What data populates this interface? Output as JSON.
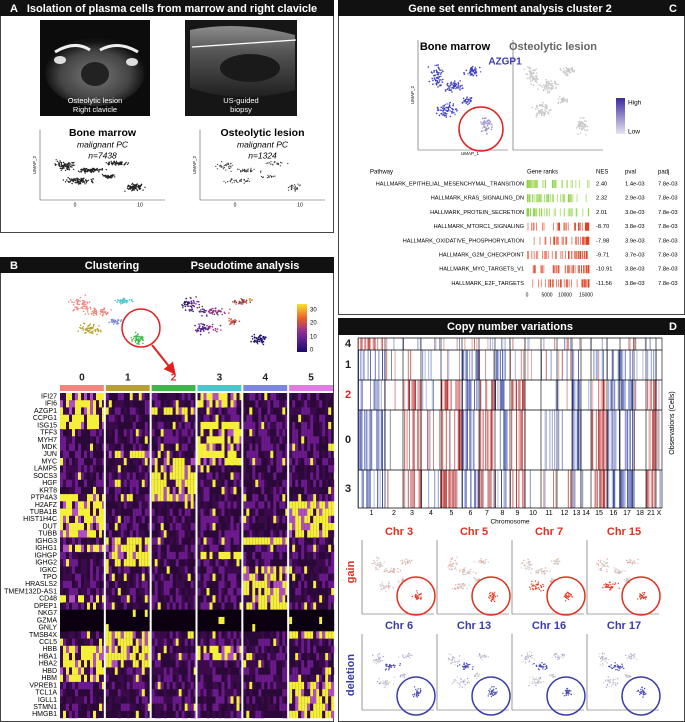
{
  "panel_a": {
    "label": "A",
    "title": "Isolation of plasma cells from marrow and right clavicle",
    "ct_caption": [
      "Osteolytic lesion",
      "Right clavicle"
    ],
    "us_caption": [
      "US-guided",
      "biopsy"
    ],
    "plots": [
      {
        "title": "Bone marrow",
        "subtitle": "malignant PC",
        "n": "n=7438",
        "y_axis": "UMAP_2",
        "x_ticks": [
          "0",
          "10"
        ]
      },
      {
        "title": "Osteolytic lesion",
        "subtitle": "malignant PC",
        "n": "n=1324",
        "y_axis": "UMAP_2",
        "x_ticks": [
          "0",
          "10"
        ]
      }
    ]
  },
  "panel_b": {
    "label": "B",
    "clustering": "Clustering",
    "pseudotime": "Pseudotime analysis",
    "colorbar_ticks": [
      "30",
      "20",
      "10",
      "0"
    ],
    "clusters": [
      {
        "label": "0",
        "color": "#f4847c"
      },
      {
        "label": "1",
        "color": "#b8a132"
      },
      {
        "label": "2",
        "color": "#3cb84a"
      },
      {
        "label": "3",
        "color": "#48c8cc"
      },
      {
        "label": "4",
        "color": "#7c86e0"
      },
      {
        "label": "5",
        "color": "#e27ae6"
      }
    ],
    "genes": [
      "IFI27",
      "IFI6",
      "AZGP1",
      "CCPG1",
      "ISG15",
      "TFF3",
      "MYH7",
      "MDK",
      "JUN",
      "MYC",
      "LAMP5",
      "SOCS3",
      "HGF",
      "KRT8",
      "PTP4A3",
      "H2AFZ",
      "TUBA1B",
      "HIST1H4C",
      "DUT",
      "TUBB",
      "IGHG3",
      "IGHG1",
      "IGHGP",
      "IGHG2",
      "IGKC",
      "TPO",
      "HRASLS2",
      "TMEM132D-AS1",
      "CD48",
      "DPEP1",
      "NKG7",
      "GZMA",
      "GNLY",
      "TMSB4X",
      "CCL5",
      "HBB",
      "HBA1",
      "HBA2",
      "HBD",
      "HBM",
      "VPREB1",
      "TCL1A",
      "IGLL1",
      "STMN1",
      "HMGB1"
    ]
  },
  "panel_c": {
    "label": "C",
    "title": "Gene set enrichment analysis cluster 2",
    "plot_titles": [
      "Bone marrow",
      "Osteolytic lesion"
    ],
    "gene": "AZGP1",
    "legend_high": "High",
    "legend_low": "Low",
    "y_axis": "UMAP_2",
    "x_axis": "UMAP_1",
    "table": {
      "headers": [
        "Pathway",
        "Gene ranks",
        "NES",
        "pval",
        "padj"
      ],
      "rows": [
        [
          "HALLMARK_EPITHELIAL_MESENCHYMAL_TRANSITION",
          "2.40",
          "1.4e-03",
          "7.8e-03"
        ],
        [
          "HALLMARK_KRAS_SIGNALING_DN",
          "2.32",
          "2.9e-03",
          "7.8e-03"
        ],
        [
          "HALLMARK_PROTEIN_SECRETION",
          "2.01",
          "3.0e-03",
          "7.8e-03"
        ],
        [
          "HALLMARK_MTORC1_SIGNALING",
          "-8.70",
          "3.8e-03",
          "7.8e-03"
        ],
        [
          "HALLMARK_OXIDATIVE_PHOSPHORYLATION",
          "-7.98",
          "3.9e-03",
          "7.8e-03"
        ],
        [
          "HALLMARK_G2M_CHECKPOINT",
          "-9.71",
          "3.7e-03",
          "7.8e-03"
        ],
        [
          "HALLMARK_MYC_TARGETS_V1",
          "-10.91",
          "3.8e-03",
          "7.8e-03"
        ],
        [
          "HALLMARK_E2F_TARGETS",
          "-11.56",
          "3.8e-03",
          "7.8e-03"
        ]
      ],
      "rank_ticks": [
        "0",
        "5000",
        "10000",
        "15000"
      ]
    }
  },
  "panel_d": {
    "label": "D",
    "title": "Copy number variations",
    "row_clusters": [
      "4",
      "1",
      "2",
      "0",
      "3"
    ],
    "y_axis": "Observations (Cells)",
    "x_axis": "Chromosome",
    "chromosomes": [
      "1",
      "2",
      "3",
      "4",
      "5",
      "6",
      "7",
      "8",
      "9",
      "10",
      "11",
      "12",
      "13",
      "14",
      "15",
      "16",
      "17",
      "18",
      "21",
      "X"
    ],
    "gain_label": "gain",
    "gain_chr": [
      "Chr 3",
      "Chr 5",
      "Chr 7",
      "Chr 15"
    ],
    "deletion_label": "deletion",
    "deletion_chr": [
      "Chr 6",
      "Chr 13",
      "Chr 16",
      "Chr 17"
    ]
  }
}
